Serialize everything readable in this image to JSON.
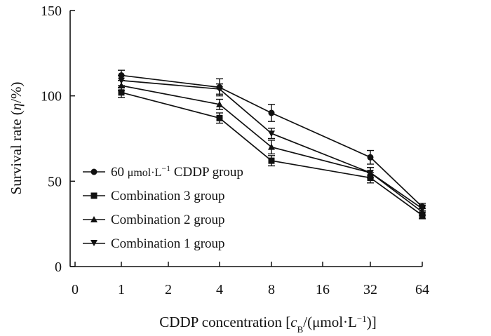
{
  "chart_data": {
    "type": "line",
    "title": "",
    "xlabel_parts": [
      "CDDP concentration [",
      "c",
      "B",
      "/(",
      "μmol·L",
      "−1",
      ")]"
    ],
    "ylabel_parts": [
      "Survival rate (",
      "η",
      "/%)"
    ],
    "x_categories": [
      "0",
      "1",
      "2",
      "4",
      "8",
      "16",
      "32",
      "64"
    ],
    "ylim": [
      0,
      150
    ],
    "yticks": [
      0,
      50,
      100,
      150
    ],
    "legend_position": "lower-left",
    "series": [
      {
        "name": "60 μmol·L⁻¹ CDDP group",
        "legend_parts": [
          "60 ",
          "μmol·L",
          "−1",
          " CDDP group"
        ],
        "marker": "circle",
        "x_index": [
          1,
          3,
          4,
          6,
          7
        ],
        "values": [
          112,
          105,
          90,
          64,
          35
        ],
        "errors": [
          3,
          5,
          5,
          4,
          2
        ]
      },
      {
        "name": "Combination 3 group",
        "legend_parts": [
          "Combination 3 group"
        ],
        "marker": "square",
        "x_index": [
          1,
          3,
          4,
          6,
          7
        ],
        "values": [
          102,
          87,
          62,
          52,
          30
        ],
        "errors": [
          3,
          3,
          3,
          3,
          2
        ]
      },
      {
        "name": "Combination 2 group",
        "legend_parts": [
          "Combination 2 group"
        ],
        "marker": "triangle-up",
        "x_index": [
          1,
          3,
          4,
          6,
          7
        ],
        "values": [
          106,
          95,
          70,
          55,
          32
        ],
        "errors": [
          3,
          3,
          4,
          3,
          2
        ]
      },
      {
        "name": "Combination 1 group",
        "legend_parts": [
          "Combination 1 group"
        ],
        "marker": "triangle-down",
        "x_index": [
          1,
          3,
          4,
          6,
          7
        ],
        "values": [
          109,
          104,
          78,
          55,
          34
        ],
        "errors": [
          3,
          3,
          3,
          3,
          2
        ]
      }
    ]
  }
}
